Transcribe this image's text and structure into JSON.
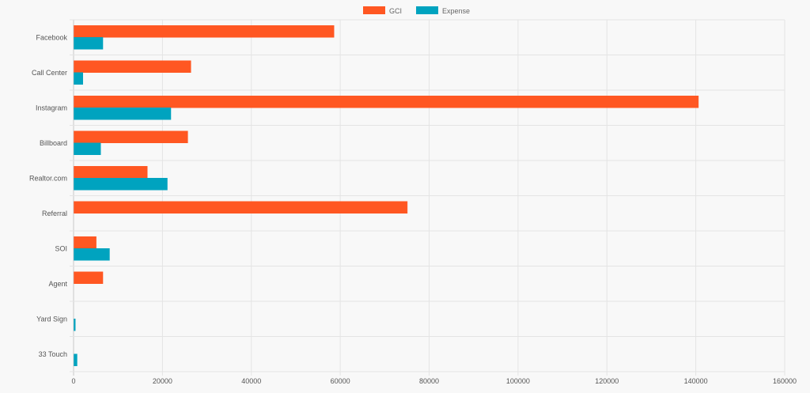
{
  "chart_data": {
    "type": "bar",
    "orientation": "horizontal",
    "categories": [
      "Facebook",
      "Call Center",
      "Instagram",
      "Billboard",
      "Realtor.com",
      "Referral",
      "SOI",
      "Agent",
      "Yard Sign",
      "33 Touch"
    ],
    "series": [
      {
        "name": "GCI",
        "color": "#ff5722",
        "values": [
          58500,
          26300,
          140500,
          25600,
          16500,
          75000,
          5000,
          6500,
          0,
          0
        ]
      },
      {
        "name": "Expense",
        "color": "#00a3bf",
        "values": [
          6500,
          2000,
          21800,
          6000,
          21000,
          0,
          8000,
          0,
          300,
          700
        ]
      }
    ],
    "xlim": [
      0,
      160000
    ],
    "x_ticks": [
      "0",
      "20000",
      "40000",
      "60000",
      "80000",
      "100000",
      "120000",
      "140000",
      "160000"
    ],
    "grid": true,
    "legend": "top-center"
  },
  "legend": {
    "items": [
      {
        "label": "GCI",
        "color": "#ff5722"
      },
      {
        "label": "Expense",
        "color": "#00a3bf"
      }
    ]
  }
}
